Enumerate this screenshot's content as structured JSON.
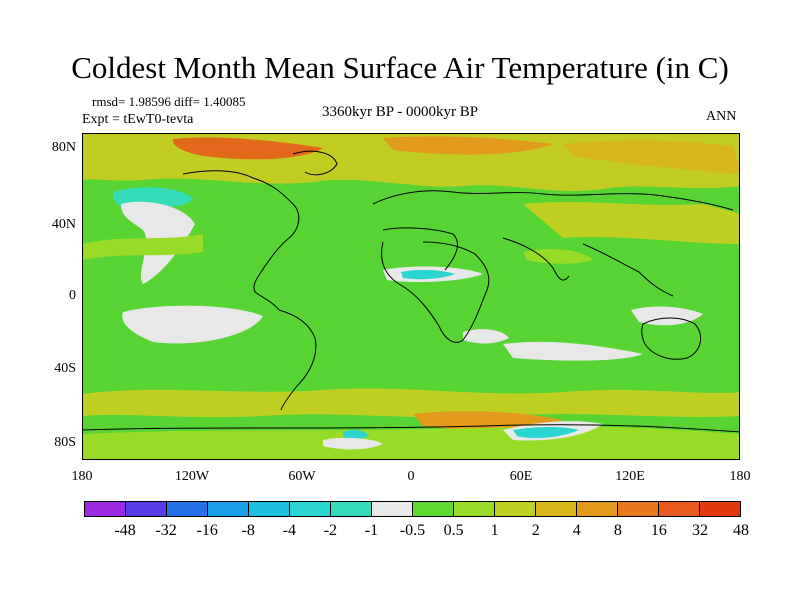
{
  "header": {
    "title": "Coldest Month Mean Surface Air Temperature (in C)",
    "stats": "rmsd= 1.98596 diff= 1.40085",
    "experiment": "Expt = tEwT0-tevta",
    "period": "3360kyr BP - 0000kyr BP",
    "season": "ANN"
  },
  "map": {
    "y_ticks": [
      "80N",
      "40N",
      "0",
      "40S",
      "80S"
    ],
    "x_ticks": [
      "180",
      "120W",
      "60W",
      "0",
      "60E",
      "120E",
      "180"
    ],
    "lat_range": [
      -90,
      90
    ],
    "lon_range": [
      -180,
      180
    ],
    "background_level_color": "#57d434"
  },
  "colorbar": {
    "labels": [
      "-48",
      "-32",
      "-16",
      "-8",
      "-4",
      "-2",
      "-1",
      "-0.5",
      "0.5",
      "1",
      "2",
      "4",
      "8",
      "16",
      "32",
      "48"
    ],
    "colors": [
      "#9a2be0",
      "#5a3be8",
      "#2472e6",
      "#1a9ee8",
      "#1fbfe0",
      "#2bd6d2",
      "#35dcb8",
      "#e8e8e8",
      "#5ed82e",
      "#98dc28",
      "#c0d020",
      "#d8b818",
      "#e29a1c",
      "#e8781e",
      "#e85a1c",
      "#e23a10"
    ]
  }
}
